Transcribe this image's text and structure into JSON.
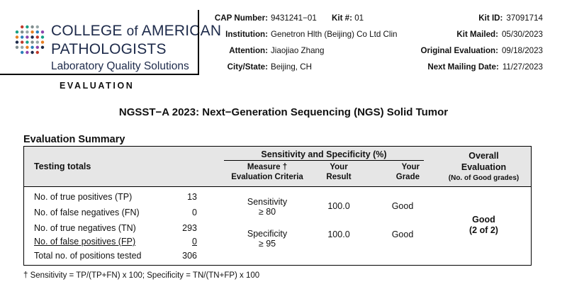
{
  "organization": {
    "line1_a": "COLLEGE ",
    "line1_of": "of",
    "line1_b": " AMERICAN",
    "line2": "PATHOLOGISTS",
    "line3": "Laboratory Quality Solutions",
    "logo_dot_colors": [
      "#c0392b",
      "#2980b9",
      "#7f8c8d",
      "#1d2a4a",
      "#e67e22",
      "#16a085",
      "#8e44ad",
      "#95a5a6"
    ]
  },
  "header": {
    "cap_number_label": "CAP Number:",
    "cap_number": "9431241−01",
    "kit_num_label": "Kit #:",
    "kit_num": "01",
    "institution_label": "Institution:",
    "institution": "Genetron Hlth (Beijing) Co Ltd Clin",
    "attention_label": "Attention:",
    "attention": "Jiaojiao Zhang",
    "city_state_label": "City/State:",
    "city_state": "Beijing, CH",
    "kit_id_label": "Kit ID:",
    "kit_id": "37091714",
    "kit_mailed_label": "Kit Mailed:",
    "kit_mailed": "05/30/2023",
    "original_evaluation_label": "Original Evaluation:",
    "original_evaluation": "09/18/2023",
    "next_mailing_label": "Next Mailing Date:",
    "next_mailing": "11/27/2023"
  },
  "evaluation_label": "EVALUATION",
  "document_title": "NGSST−A 2023: Next−Generation Sequencing (NGS) Solid Tumor",
  "summary_title": "Evaluation Summary",
  "table": {
    "testing_totals_header": "Testing totals",
    "sens_spec_header": "Sensitivity and Specificity (%)",
    "measure_header_1": "Measure †",
    "measure_header_2": "Evaluation Criteria",
    "your_result_header_1": "Your",
    "your_result_header_2": "Result",
    "your_grade_header_1": "Your",
    "your_grade_header_2": "Grade",
    "overall_header_1": "Overall",
    "overall_header_2": "Evaluation",
    "overall_header_3": "(No. of Good grades)",
    "totals": [
      {
        "label": "No. of true positives (TP)",
        "value": "13"
      },
      {
        "label": "No. of false negatives (FN)",
        "value": "0"
      },
      {
        "label": "No. of true negatives (TN)",
        "value": "293"
      },
      {
        "label": "No. of false positives (FP)",
        "value": "0"
      },
      {
        "label": "Total no. of positions tested",
        "value": "306"
      }
    ],
    "measures": [
      {
        "name": "Sensitivity",
        "criteria": "≥ 80",
        "result": "100.0",
        "grade": "Good"
      },
      {
        "name": "Specificity",
        "criteria": "≥ 95",
        "result": "100.0",
        "grade": "Good"
      }
    ],
    "overall_grade": "Good",
    "overall_count": "(2 of 2)"
  },
  "footnote": "† Sensitivity = TP/(TP+FN) x 100; Specificity = TN/(TN+FP) x 100"
}
